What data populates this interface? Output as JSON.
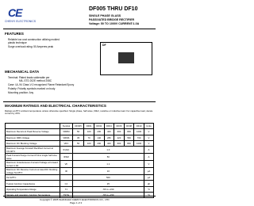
{
  "header": {
    "logo": "CE",
    "company": "CHENYI ELECTRONICS",
    "part": "DF005 THRU DF10",
    "subtitle": [
      "SINGLE PHASE GLASS",
      "PASSIVATED BRIDGE RECTIFIER",
      "Voltage: 50 TO 1000V   CURRENT:1.0A"
    ]
  },
  "features": {
    "title": "FEATURES",
    "items": [
      "Reliable low cost construction utilizing molded",
      "plastic technique",
      "Surge overload rating: 50 Amperes peak"
    ]
  },
  "package": {
    "label": "DF"
  },
  "mechanical": {
    "title": "MECHANICAL DATA",
    "items": [
      "Terminal: Plated leads solderable per",
      "MIL-STD 202E method 208C",
      "Case: UL-94 Class V-0 recognized Flame Retardant Epoxy",
      "Polarity: Polarity symbols marked on body",
      "Mounting position: Any"
    ]
  },
  "ratings": {
    "title": "MAXIMUM RATINGS AND ELECTRICAL CHARACTERISTICS",
    "note": "Ratings at 25°C ambient temperature unless otherwise specified. Single phase, half wave, 60Hz, resistive or inductive load. For capacitive load, derate current by 20%.",
    "table": {
      "header": [
        "",
        "Symbol",
        "DF005",
        "DF01",
        "DF02",
        "DF04",
        "DF06",
        "DF08",
        "DF10",
        "Units"
      ],
      "rows": [
        {
          "label": "Maximum Recurrent Peak Reverse Voltage",
          "symbol": "VRRM",
          "values": [
            "50",
            "100",
            "200",
            "400",
            "600",
            "800",
            "1000"
          ],
          "unit": "V"
        },
        {
          "label": "Maximum RMS Voltage",
          "symbol": "VRMS",
          "values": [
            "35",
            "70",
            "140",
            "280",
            "420",
            "560",
            "700"
          ],
          "unit": "V"
        },
        {
          "label": "Maximum DC Blocking Voltage",
          "symbol": "VDC",
          "values": [
            "50",
            "100",
            "200",
            "400",
            "600",
            "800",
            "1000"
          ],
          "unit": "V"
        },
        {
          "label": "Maximum Average Forward Rectified Current at TA=40°C",
          "symbol": "IF(AV)",
          "values": [
            "1.0"
          ],
          "unit": "A"
        },
        {
          "label": "Peak Forward Surge Current 8.3ms single half sine-wave",
          "symbol": "IFSM",
          "values": [
            "50"
          ],
          "unit": "A"
        },
        {
          "label": "Maximum Instantaneous Forward Voltage at forward current 1.0A",
          "symbol": "VF",
          "values": [
            "1.1"
          ],
          "unit": "V"
        },
        {
          "label": "Maximum DC Reverse Current at rated DC blocking voltage Ta=25°C",
          "symbol": "IR",
          "values": [
            "10"
          ],
          "unit": "µA"
        },
        {
          "label": "Ta=125°C",
          "symbol": "",
          "values": [
            "500"
          ],
          "unit": "µA"
        },
        {
          "label": "Typical Junction Capacitance",
          "symbol": "CJ",
          "values": [
            "25"
          ],
          "unit": "pF"
        },
        {
          "label": "Operating Temperature Range",
          "symbol": "TJ",
          "values": [
            "-55 to +150"
          ],
          "unit": "°C"
        },
        {
          "label": "Storage and operation Junction Temperature",
          "symbol": "TSTG",
          "values": [
            "-55 to +150"
          ],
          "unit": "°C"
        }
      ]
    }
  },
  "footer": {
    "copyright": "Copyright © 2005 SHANGHAI CHENYI ELECTRONICS CO., LTD",
    "page": "Page 1 of 2"
  }
}
